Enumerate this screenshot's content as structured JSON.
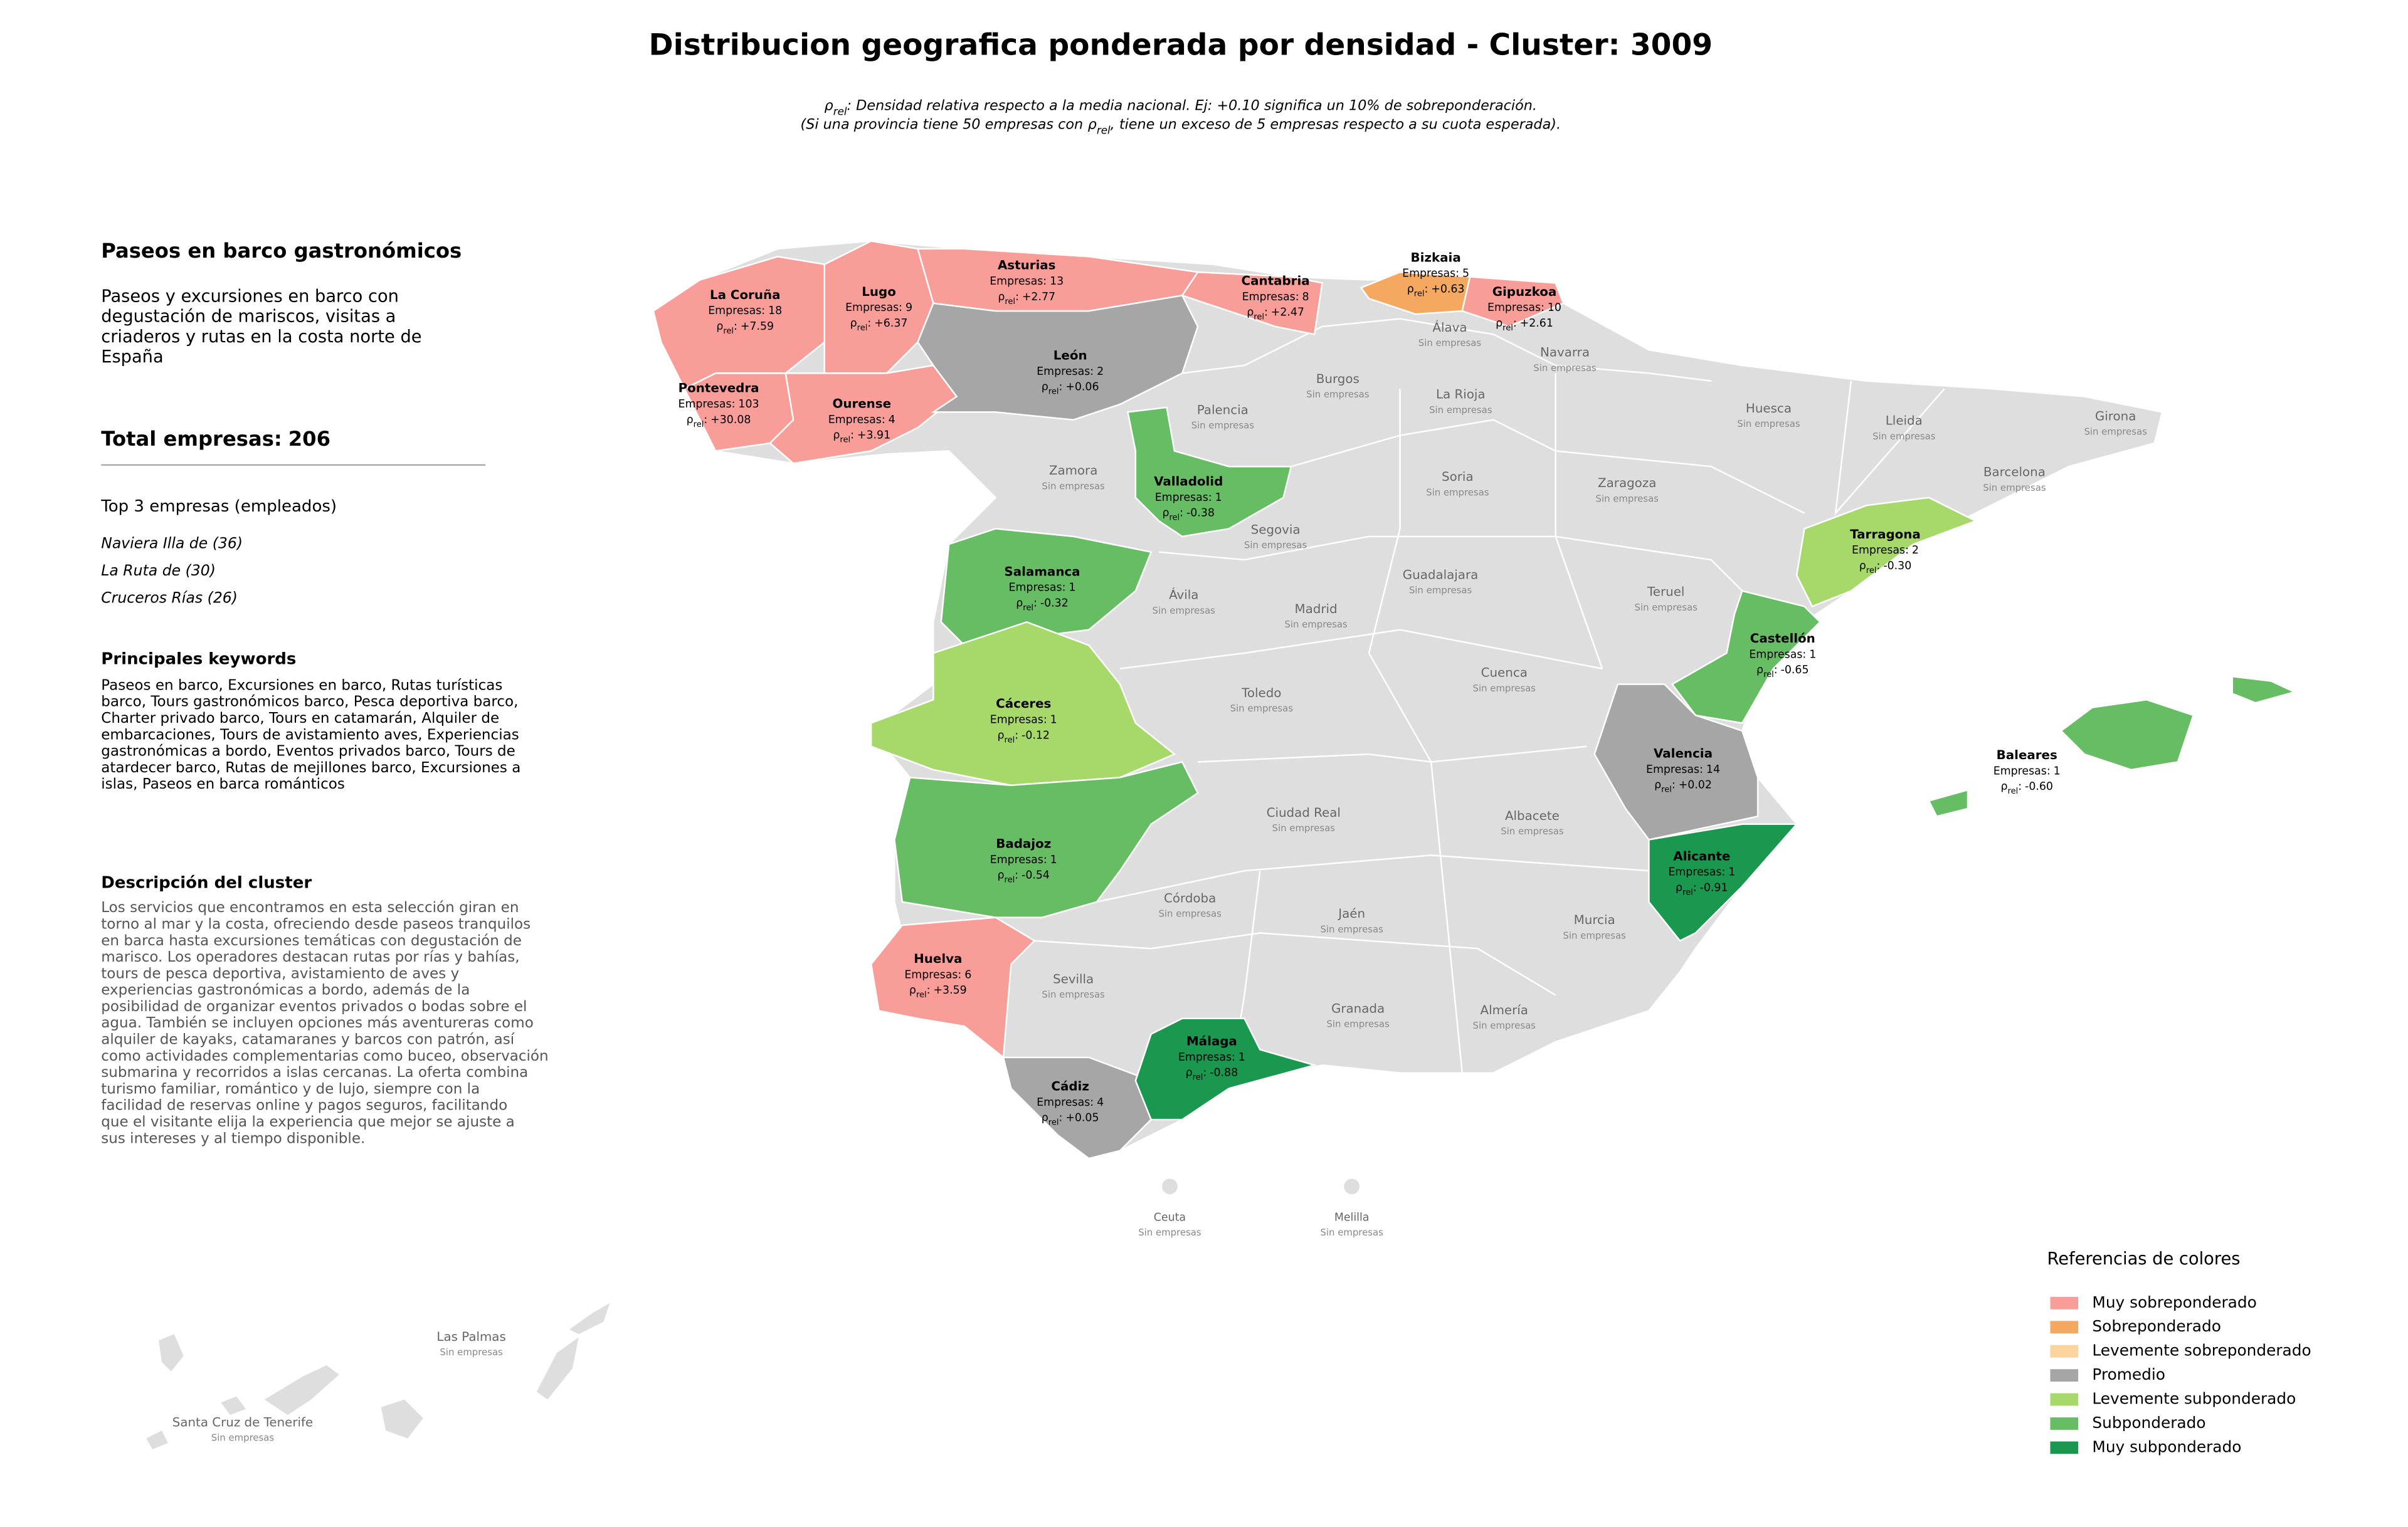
{
  "title": "Distribucion geografica ponderada por densidad - Cluster: 3009",
  "density_symbol": "ρ",
  "density_subscript": "rel",
  "density_separator": ":",
  "subtitle_line1_rest": ": Densidad relativa respecto a la media nacional. Ej: +0.10 significa un 10% de sobreponderación.",
  "subtitle_line2_start": "(Si una provincia tiene 50 empresas con",
  "subtitle_line2_end": ", tiene un exceso de 5 empresas respecto a su cuota esperada).",
  "panel": {
    "heading": "Paseos en barco gastronómicos",
    "summary_lines": [
      "Paseos y excursiones en barco con",
      "degustación de mariscos, visitas a",
      "criaderos y rutas en la costa norte de",
      "España"
    ],
    "total_label": "Total empresas:",
    "total": 206,
    "top_heading": "Top 3 empresas (empleados)",
    "top_items": [
      "Naviera Illa de (36)",
      "La Ruta de (30)",
      "Cruceros Rías (26)"
    ],
    "keywords_heading": "Principales keywords",
    "keywords_lines": [
      "Paseos en barco, Excursiones en barco, Rutas turísticas",
      "barco, Tours gastronómicos barco, Pesca deportiva barco,",
      "Charter privado barco, Tours en catamarán, Alquiler de",
      "embarcaciones, Tours de avistamiento aves, Experiencias",
      "gastronómicas a bordo, Eventos privados barco, Tours de",
      "atardecer barco, Rutas de mejillones barco, Excursiones a",
      "islas, Paseos en barca románticos"
    ],
    "description_heading": "Descripción del cluster",
    "description_lines": [
      "Los servicios que encontramos en esta selección giran en",
      "torno al mar y la costa, ofreciendo desde paseos tranquilos",
      "en barca hasta excursiones temáticas con degustación de",
      "marisco. Los operadores destacan rutas por rías y bahías,",
      "tours de pesca deportiva, avistamiento de aves y",
      "experiencias gastronómicas a bordo, además de la",
      "posibilidad de organizar eventos privados o bodas sobre el",
      "agua. También se incluyen opciones más aventureras como",
      "alquiler de kayaks, catamaranes y barcos con patrón, así",
      "como actividades complementarias como buceo, observación",
      "submarina y recorridos a islas cercanas. La oferta combina",
      "turismo familiar, romántico y de lujo, siempre con la",
      "facilidad de reservas online y pagos seguros, facilitando",
      "que el visitante elija la experiencia que mejor se ajuste a",
      "sus intereses y al tiempo disponible."
    ]
  },
  "companies_label": "Empresas:",
  "no_companies": "Sin empresas",
  "provinces": [
    {
      "name": "La Coruña",
      "companies": 18,
      "density": "+7.59",
      "color": "#f89d98"
    },
    {
      "name": "Lugo",
      "companies": 9,
      "density": "+6.37",
      "color": "#f89d98"
    },
    {
      "name": "Asturias",
      "companies": 13,
      "density": "+2.77",
      "color": "#f89d98"
    },
    {
      "name": "Cantabria",
      "companies": 8,
      "density": "+2.47",
      "color": "#f89d98"
    },
    {
      "name": "Bizkaia",
      "companies": 5,
      "density": "+0.63",
      "color": "#f5a85f"
    },
    {
      "name": "Gipuzkoa",
      "companies": 10,
      "density": "+2.61",
      "color": "#f89d98"
    },
    {
      "name": "Pontevedra",
      "companies": 103,
      "density": "+30.08",
      "color": "#f89d98"
    },
    {
      "name": "Ourense",
      "companies": 4,
      "density": "+3.91",
      "color": "#f89d98"
    },
    {
      "name": "León",
      "companies": 2,
      "density": "+0.06",
      "color": "#a6a6a6"
    },
    {
      "name": "Valladolid",
      "companies": 1,
      "density": "-0.38",
      "color": "#66bd63"
    },
    {
      "name": "Salamanca",
      "companies": 1,
      "density": "-0.32",
      "color": "#66bd63"
    },
    {
      "name": "Cáceres",
      "companies": 1,
      "density": "-0.12",
      "color": "#a6d96a"
    },
    {
      "name": "Badajoz",
      "companies": 1,
      "density": "-0.54",
      "color": "#66bd63"
    },
    {
      "name": "Huelva",
      "companies": 6,
      "density": "+3.59",
      "color": "#f89d98"
    },
    {
      "name": "Cádiz",
      "companies": 4,
      "density": "+0.05",
      "color": "#a6a6a6"
    },
    {
      "name": "Málaga",
      "companies": 1,
      "density": "-0.88",
      "color": "#1a9850"
    },
    {
      "name": "Alicante",
      "companies": 1,
      "density": "-0.91",
      "color": "#1a9850"
    },
    {
      "name": "Valencia",
      "companies": 14,
      "density": "+0.02",
      "color": "#a6a6a6"
    },
    {
      "name": "Castellón",
      "companies": 1,
      "density": "-0.65",
      "color": "#66bd63"
    },
    {
      "name": "Tarragona",
      "companies": 2,
      "density": "-0.30",
      "color": "#a6d96a"
    },
    {
      "name": "Baleares",
      "companies": 1,
      "density": "-0.60",
      "color": "#66bd63"
    }
  ],
  "empty_provinces": [
    "Álava",
    "Navarra",
    "Burgos",
    "Palencia",
    "La Rioja",
    "Huesca",
    "Lleida",
    "Girona",
    "Zamora",
    "Soria",
    "Zaragoza",
    "Barcelona",
    "Segovia",
    "Guadalajara",
    "Teruel",
    "Ávila",
    "Madrid",
    "Cuenca",
    "Toledo",
    "Ciudad Real",
    "Albacete",
    "Córdoba",
    "Jaén",
    "Murcia",
    "Sevilla",
    "Granada",
    "Almería",
    "Ceuta",
    "Melilla",
    "Las Palmas",
    "Santa Cruz de Tenerife"
  ],
  "legend": {
    "title": "Referencias de colores",
    "items": [
      {
        "name": "Muy sobreponderado",
        "color": "#f89d98"
      },
      {
        "name": "Sobreponderado",
        "color": "#f5a85f"
      },
      {
        "name": "Levemente sobreponderado",
        "color": "#fdd49e"
      },
      {
        "name": "Promedio",
        "color": "#a6a6a6"
      },
      {
        "name": "Levemente subponderado",
        "color": "#a6d96a"
      },
      {
        "name": "Subponderado",
        "color": "#66bd63"
      },
      {
        "name": "Muy subponderado",
        "color": "#1a9850"
      }
    ]
  }
}
